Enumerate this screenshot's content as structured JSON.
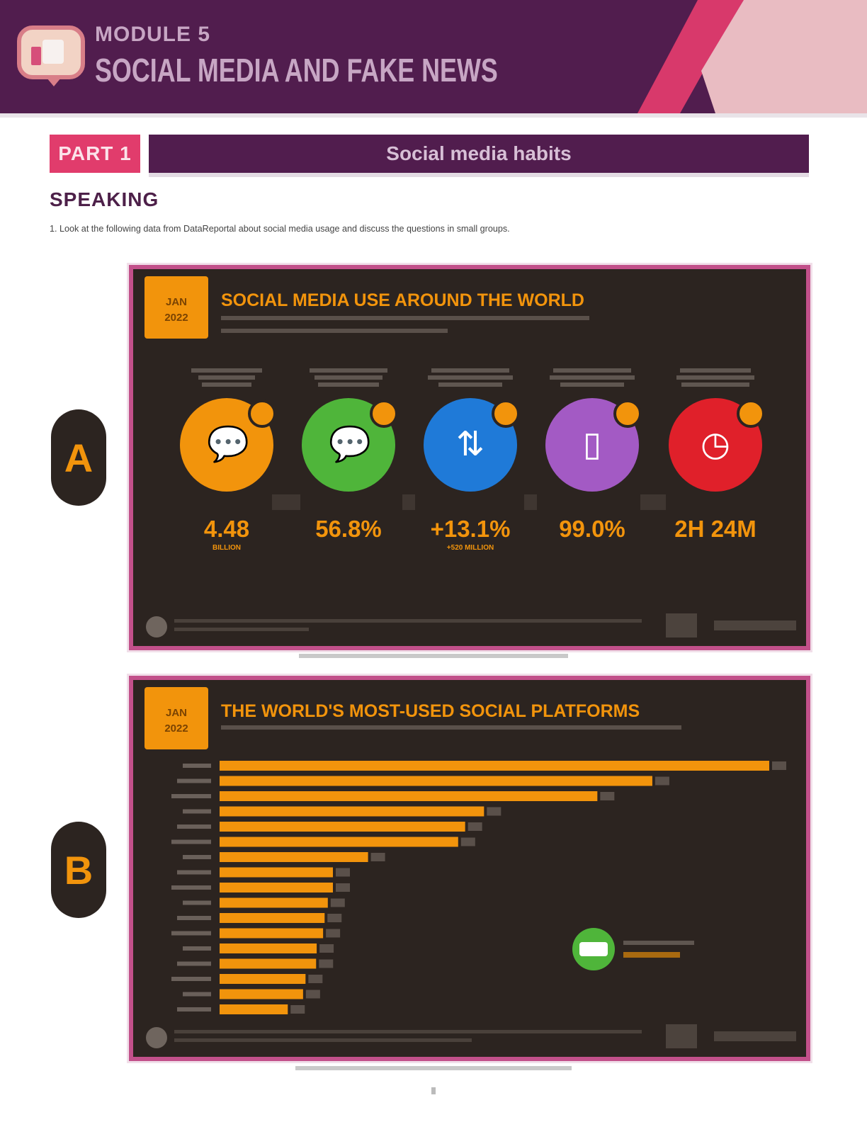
{
  "header": {
    "module": "MODULE 5",
    "title": "SOCIAL MEDIA AND FAKE NEWS"
  },
  "part": {
    "tag": "PART 1",
    "heading": "Social media habits"
  },
  "section": "SPEAKING",
  "instruction": "1.   Look at the following data from DataReportal about social media usage and discuss the questions in small groups.",
  "panels": {
    "a": {
      "letter": "A",
      "badge_line1": "JAN",
      "badge_line2": "2022",
      "title": "SOCIAL MEDIA USE AROUND THE WORLD",
      "stats": [
        {
          "value": "4.48",
          "sub": "BILLION",
          "color": "#f2940c",
          "icon": "chat-bubbles-icon"
        },
        {
          "value": "56.8%",
          "sub": "",
          "color": "#4fb53a",
          "icon": "chat-bubbles-icon"
        },
        {
          "value": "+13.1%",
          "sub": "+520 MILLION",
          "color": "#1f7ad8",
          "icon": "arrows-icon"
        },
        {
          "value": "99.0%",
          "sub": "",
          "color": "#a35ac4",
          "icon": "mobile-icon"
        },
        {
          "value": "2H 24M",
          "sub": "",
          "color": "#e0202a",
          "icon": "clock-icon"
        }
      ]
    },
    "b": {
      "letter": "B",
      "badge_line1": "JAN",
      "badge_line2": "2022",
      "title": "THE WORLD'S MOST-USED SOCIAL PLATFORMS"
    }
  },
  "chart_data": {
    "type": "bar",
    "orientation": "horizontal",
    "values": [
      2910,
      2291,
      2000,
      1400,
      1300,
      1263,
      786,
      600,
      600,
      573,
      556,
      548,
      514,
      511,
      455,
      442,
      361
    ],
    "xlim": [
      0,
      2910
    ],
    "bar_color": "#f2940c",
    "grid": false
  }
}
